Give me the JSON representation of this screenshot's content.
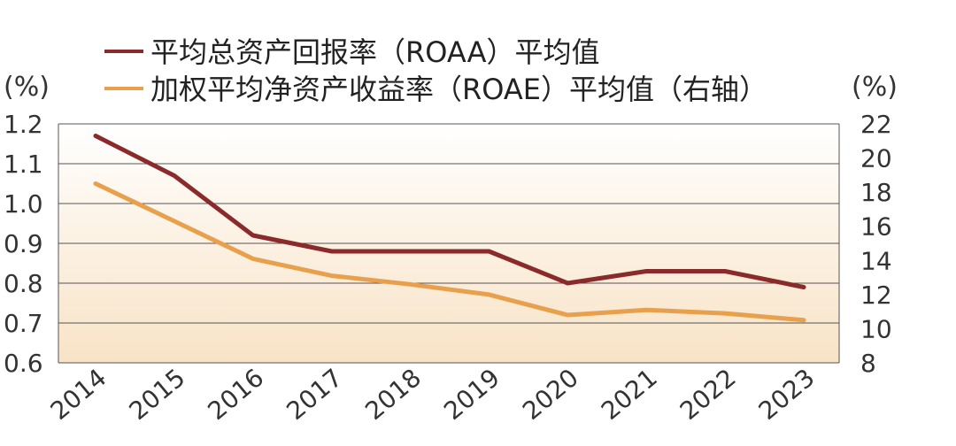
{
  "chart_data": {
    "type": "line",
    "categories": [
      "2014",
      "2015",
      "2016",
      "2017",
      "2018",
      "2019",
      "2020",
      "2021",
      "2022",
      "2023"
    ],
    "series": [
      {
        "name": "平均总资产回报率（ROAA）平均值",
        "axis": "left",
        "color": "#8b2a2a",
        "values": [
          1.17,
          1.07,
          0.92,
          0.88,
          0.88,
          0.88,
          0.8,
          0.83,
          0.83,
          0.79
        ]
      },
      {
        "name": "加权平均净资产收益率（ROAE）平均值（右轴）",
        "axis": "right",
        "color": "#e8a04c",
        "values": [
          18.5,
          16.3,
          14.1,
          13.1,
          12.6,
          12.0,
          10.8,
          11.1,
          10.9,
          10.5
        ]
      }
    ],
    "ylabel_left": "(%)",
    "ylabel_right": "(%)",
    "ylim_left": [
      0.6,
      1.2
    ],
    "ylim_right": [
      8,
      22
    ],
    "yticks_left": [
      "0.6",
      "0.7",
      "0.8",
      "0.9",
      "1.0",
      "1.1",
      "1.2"
    ],
    "yticks_right": [
      "8",
      "10",
      "12",
      "14",
      "16",
      "18",
      "20",
      "22"
    ],
    "grid": true,
    "legend": "top-left",
    "background_gradient": [
      "#ffffff",
      "#f8e3c6"
    ]
  }
}
